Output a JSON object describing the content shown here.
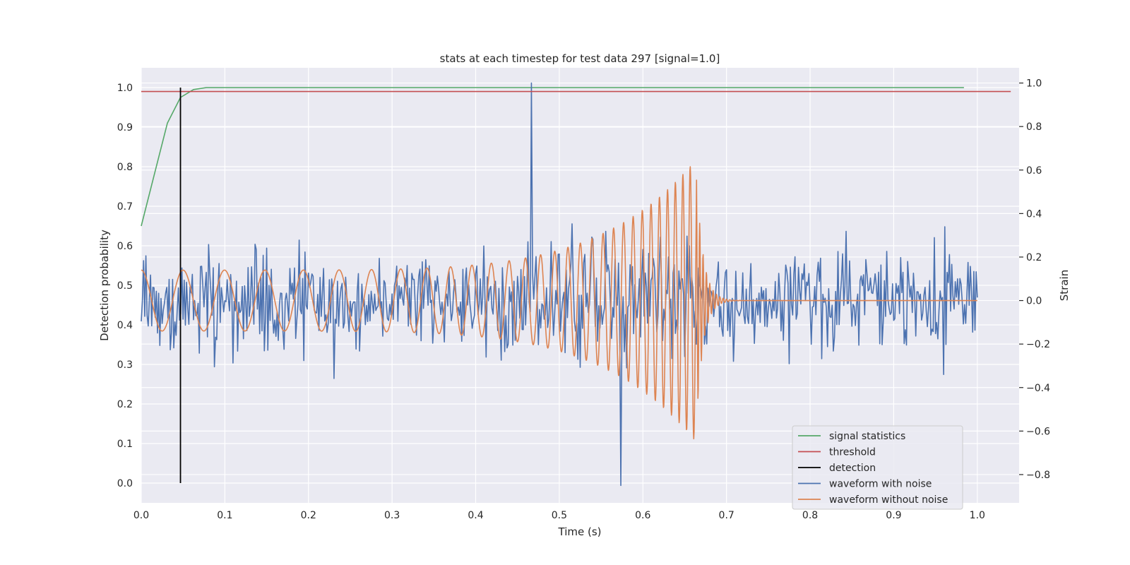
{
  "chart_data": {
    "type": "line",
    "title": "stats at each timestep for test data 297 [signal=1.0]",
    "xlabel": "Time (s)",
    "ylabel_left": "Detection probability",
    "ylabel_right": "Strain",
    "xlim": [
      0.0,
      1.05
    ],
    "ylim_left": [
      -0.05,
      1.05
    ],
    "ylim_right": [
      -0.93,
      1.07
    ],
    "x_ticks": [
      0.0,
      0.1,
      0.2,
      0.3,
      0.4,
      0.5,
      0.6,
      0.7,
      0.8,
      0.9,
      1.0
    ],
    "x_tick_labels": [
      "0.0",
      "0.1",
      "0.2",
      "0.3",
      "0.4",
      "0.5",
      "0.6",
      "0.7",
      "0.8",
      "0.9",
      "1.0"
    ],
    "y_left_ticks": [
      0.0,
      0.1,
      0.2,
      0.3,
      0.4,
      0.5,
      0.6,
      0.7,
      0.8,
      0.9,
      1.0
    ],
    "y_left_tick_labels": [
      "0.0",
      "0.1",
      "0.2",
      "0.3",
      "0.4",
      "0.5",
      "0.6",
      "0.7",
      "0.8",
      "0.9",
      "1.0"
    ],
    "y_right_ticks": [
      -0.8,
      -0.6,
      -0.4,
      -0.2,
      0.0,
      0.2,
      0.4,
      0.6,
      0.8,
      1.0
    ],
    "y_right_tick_labels": [
      "−0.8",
      "−0.6",
      "−0.4",
      "−0.2",
      "0.0",
      "0.2",
      "0.4",
      "0.6",
      "0.8",
      "1.0"
    ],
    "grid": true,
    "legend_position": "lower-right",
    "series": [
      {
        "name": "signal statistics",
        "axis": "left",
        "color": "#55a868",
        "x": [
          0.0,
          0.0156,
          0.03125,
          0.0469,
          0.0625,
          0.078,
          0.09,
          0.12,
          0.2,
          0.5,
          0.8,
          0.984
        ],
        "y": [
          0.65,
          0.78,
          0.91,
          0.975,
          0.995,
          1.0,
          1.0,
          1.0,
          1.0,
          1.0,
          1.0,
          1.0
        ]
      },
      {
        "name": "threshold",
        "axis": "left",
        "color": "#c44e52",
        "x": [
          0.0,
          1.04
        ],
        "y": [
          0.99,
          0.99
        ]
      },
      {
        "name": "detection",
        "axis": "left",
        "color": "#000000",
        "x": [
          0.0469,
          0.0469
        ],
        "y": [
          0.0,
          1.0
        ]
      },
      {
        "name": "waveform with noise",
        "axis": "right",
        "color": "#4c72b0",
        "generated": "noise",
        "x_range": [
          0.0,
          1.0
        ],
        "samples": 720,
        "amplitude_std": 0.2,
        "max": 1.0,
        "min": -0.85
      },
      {
        "name": "waveform without noise",
        "axis": "right",
        "color": "#dd8452",
        "generated": "chirp",
        "x_range": [
          0.0,
          1.0
        ],
        "merger_time": 0.664,
        "start_amplitude": 0.14,
        "peak_amplitude": 0.65
      }
    ]
  }
}
